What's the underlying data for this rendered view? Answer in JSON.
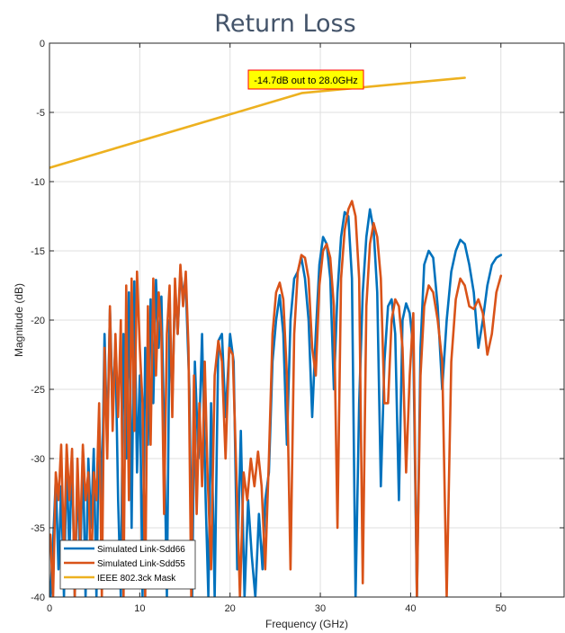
{
  "chart_data": {
    "type": "line",
    "title": "Return Loss",
    "xlabel": "Frequency (GHz)",
    "ylabel": "Magnitude (dB)",
    "xlim": [
      0,
      57
    ],
    "ylim": [
      -40,
      0
    ],
    "xticks": [
      0,
      10,
      20,
      30,
      40,
      50
    ],
    "yticks": [
      0,
      -5,
      -10,
      -15,
      -20,
      -25,
      -30,
      -35,
      -40
    ],
    "grid": true,
    "legend_position": "bottom-left",
    "annotation": {
      "text": "-14.7dB out to 28.0GHz",
      "x": 29.5,
      "y": -2.6
    },
    "series": [
      {
        "name": "Simulated Link-Sdd66",
        "color": "#0072bd",
        "points": [
          [
            0.1,
            -40
          ],
          [
            0.4,
            -36
          ],
          [
            0.7,
            -31.5
          ],
          [
            1.0,
            -38
          ],
          [
            1.3,
            -32
          ],
          [
            1.6,
            -40
          ],
          [
            1.9,
            -30
          ],
          [
            2.2,
            -37
          ],
          [
            2.5,
            -29.5
          ],
          [
            2.8,
            -40
          ],
          [
            3.1,
            -31
          ],
          [
            3.4,
            -38
          ],
          [
            3.7,
            -29.5
          ],
          [
            4.0,
            -40
          ],
          [
            4.3,
            -30
          ],
          [
            4.6,
            -35
          ],
          [
            4.9,
            -29.3
          ],
          [
            5.2,
            -40
          ],
          [
            5.5,
            -27
          ],
          [
            5.8,
            -33
          ],
          [
            6.1,
            -21
          ],
          [
            6.4,
            -29
          ],
          [
            6.7,
            -19.2
          ],
          [
            7.0,
            -26
          ],
          [
            7.3,
            -22
          ],
          [
            7.6,
            -33
          ],
          [
            7.9,
            -40
          ],
          [
            8.2,
            -21
          ],
          [
            8.5,
            -30
          ],
          [
            8.8,
            -18
          ],
          [
            9.1,
            -35
          ],
          [
            9.4,
            -17.2
          ],
          [
            9.7,
            -31
          ],
          [
            10.0,
            -24
          ],
          [
            10.3,
            -40
          ],
          [
            10.6,
            -22
          ],
          [
            10.9,
            -29
          ],
          [
            11.2,
            -18.5
          ],
          [
            11.5,
            -26
          ],
          [
            11.8,
            -17.1
          ],
          [
            12.1,
            -22
          ],
          [
            12.4,
            -18.3
          ],
          [
            12.7,
            -28
          ],
          [
            13.0,
            -40
          ],
          [
            13.3,
            -20
          ],
          [
            13.6,
            -26
          ],
          [
            13.9,
            -17.5
          ],
          [
            14.2,
            -21
          ],
          [
            14.5,
            -16.5
          ],
          [
            14.8,
            -18
          ],
          [
            15.1,
            -17.5
          ],
          [
            15.5,
            -25
          ],
          [
            15.8,
            -40
          ],
          [
            16.1,
            -23
          ],
          [
            16.5,
            -30
          ],
          [
            16.9,
            -21
          ],
          [
            17.3,
            -33
          ],
          [
            17.6,
            -40
          ],
          [
            17.9,
            -26
          ],
          [
            18.3,
            -40
          ],
          [
            18.7,
            -21.5
          ],
          [
            19.1,
            -21
          ],
          [
            19.5,
            -27
          ],
          [
            20.0,
            -21
          ],
          [
            20.4,
            -23
          ],
          [
            20.8,
            -38
          ],
          [
            21.2,
            -28
          ],
          [
            21.6,
            -40
          ],
          [
            22.0,
            -33
          ],
          [
            22.4,
            -37
          ],
          [
            22.8,
            -40
          ],
          [
            23.2,
            -34
          ],
          [
            23.6,
            -38
          ],
          [
            23.9,
            -33
          ],
          [
            24.3,
            -31
          ],
          [
            24.7,
            -23
          ],
          [
            25.1,
            -20
          ],
          [
            25.5,
            -18.2
          ],
          [
            25.9,
            -21
          ],
          [
            26.3,
            -29
          ],
          [
            26.7,
            -20
          ],
          [
            27.1,
            -17
          ],
          [
            27.5,
            -16.5
          ],
          [
            27.9,
            -15.5
          ],
          [
            28.3,
            -17
          ],
          [
            28.7,
            -20
          ],
          [
            29.1,
            -27
          ],
          [
            29.5,
            -21
          ],
          [
            29.9,
            -16
          ],
          [
            30.3,
            -14
          ],
          [
            30.7,
            -14.5
          ],
          [
            31.1,
            -17
          ],
          [
            31.5,
            -25
          ],
          [
            31.9,
            -18
          ],
          [
            32.3,
            -14
          ],
          [
            32.7,
            -12.2
          ],
          [
            33.1,
            -12.5
          ],
          [
            33.5,
            -17
          ],
          [
            33.9,
            -40
          ],
          [
            34.3,
            -26
          ],
          [
            34.7,
            -18
          ],
          [
            35.1,
            -14
          ],
          [
            35.5,
            -12
          ],
          [
            35.9,
            -13.5
          ],
          [
            36.3,
            -18
          ],
          [
            36.7,
            -32
          ],
          [
            37.1,
            -23
          ],
          [
            37.5,
            -19
          ],
          [
            37.9,
            -18.5
          ],
          [
            38.3,
            -21
          ],
          [
            38.7,
            -33
          ],
          [
            39.1,
            -20
          ],
          [
            39.5,
            -18.8
          ],
          [
            39.9,
            -19.5
          ],
          [
            40.3,
            -22
          ],
          [
            40.7,
            -40
          ],
          [
            41.1,
            -22
          ],
          [
            41.5,
            -16
          ],
          [
            42.0,
            -15
          ],
          [
            42.5,
            -15.5
          ],
          [
            43.0,
            -19
          ],
          [
            43.5,
            -25
          ],
          [
            44.0,
            -20
          ],
          [
            44.5,
            -16.5
          ],
          [
            45.0,
            -15
          ],
          [
            45.5,
            -14.2
          ],
          [
            46.0,
            -14.5
          ],
          [
            46.5,
            -16
          ],
          [
            47.0,
            -18
          ],
          [
            47.5,
            -22
          ],
          [
            48.0,
            -20
          ],
          [
            48.5,
            -17.5
          ],
          [
            49.0,
            -16
          ],
          [
            49.5,
            -15.5
          ],
          [
            50.0,
            -15.3
          ]
        ]
      },
      {
        "name": "Simulated Link-Sdd55",
        "color": "#d95319",
        "points": [
          [
            0.1,
            -35.5
          ],
          [
            0.4,
            -40
          ],
          [
            0.7,
            -31
          ],
          [
            1.0,
            -33
          ],
          [
            1.3,
            -29
          ],
          [
            1.6,
            -37
          ],
          [
            1.9,
            -29
          ],
          [
            2.2,
            -33
          ],
          [
            2.5,
            -29.3
          ],
          [
            2.8,
            -40
          ],
          [
            3.1,
            -30
          ],
          [
            3.4,
            -36
          ],
          [
            3.7,
            -29
          ],
          [
            4.0,
            -33
          ],
          [
            4.3,
            -31
          ],
          [
            4.6,
            -39
          ],
          [
            4.9,
            -31
          ],
          [
            5.2,
            -33
          ],
          [
            5.5,
            -26
          ],
          [
            5.8,
            -40
          ],
          [
            6.1,
            -22
          ],
          [
            6.4,
            -30
          ],
          [
            6.7,
            -19
          ],
          [
            7.0,
            -28
          ],
          [
            7.3,
            -21
          ],
          [
            7.6,
            -27
          ],
          [
            7.9,
            -20
          ],
          [
            8.2,
            -40
          ],
          [
            8.5,
            -17.5
          ],
          [
            8.8,
            -33
          ],
          [
            9.1,
            -17
          ],
          [
            9.4,
            -28
          ],
          [
            9.7,
            -16.5
          ],
          [
            10.0,
            -22
          ],
          [
            10.3,
            -26
          ],
          [
            10.6,
            -40
          ],
          [
            10.9,
            -19
          ],
          [
            11.2,
            -29
          ],
          [
            11.5,
            -17
          ],
          [
            11.8,
            -24
          ],
          [
            12.1,
            -18
          ],
          [
            12.4,
            -21
          ],
          [
            12.7,
            -34
          ],
          [
            13.0,
            -21
          ],
          [
            13.3,
            -17.5
          ],
          [
            13.6,
            -27
          ],
          [
            13.9,
            -17
          ],
          [
            14.2,
            -21
          ],
          [
            14.5,
            -16
          ],
          [
            14.8,
            -19
          ],
          [
            15.1,
            -16.5
          ],
          [
            15.4,
            -22
          ],
          [
            15.7,
            -40
          ],
          [
            16.0,
            -24
          ],
          [
            16.3,
            -34
          ],
          [
            16.6,
            -26
          ],
          [
            16.9,
            -32
          ],
          [
            17.2,
            -23
          ],
          [
            17.5,
            -31
          ],
          [
            17.9,
            -38
          ],
          [
            18.3,
            -24
          ],
          [
            18.7,
            -21.5
          ],
          [
            19.1,
            -23
          ],
          [
            19.5,
            -30
          ],
          [
            19.9,
            -22
          ],
          [
            20.3,
            -22.5
          ],
          [
            20.7,
            -31
          ],
          [
            21.1,
            -40
          ],
          [
            21.5,
            -31
          ],
          [
            21.9,
            -33
          ],
          [
            22.3,
            -30
          ],
          [
            22.7,
            -32
          ],
          [
            23.1,
            -29.5
          ],
          [
            23.5,
            -32
          ],
          [
            23.9,
            -38
          ],
          [
            24.3,
            -30
          ],
          [
            24.7,
            -21
          ],
          [
            25.1,
            -18
          ],
          [
            25.5,
            -17.3
          ],
          [
            25.9,
            -18.5
          ],
          [
            26.3,
            -24
          ],
          [
            26.7,
            -38
          ],
          [
            27.1,
            -21
          ],
          [
            27.5,
            -16.5
          ],
          [
            27.9,
            -15.3
          ],
          [
            28.3,
            -15.5
          ],
          [
            28.7,
            -17
          ],
          [
            29.1,
            -22
          ],
          [
            29.5,
            -24
          ],
          [
            29.9,
            -17.5
          ],
          [
            30.3,
            -15
          ],
          [
            30.7,
            -14.5
          ],
          [
            31.1,
            -15.5
          ],
          [
            31.5,
            -19
          ],
          [
            31.9,
            -35
          ],
          [
            32.3,
            -17
          ],
          [
            32.7,
            -13.5
          ],
          [
            33.1,
            -12
          ],
          [
            33.5,
            -11.4
          ],
          [
            33.9,
            -12.5
          ],
          [
            34.3,
            -17
          ],
          [
            34.7,
            -39
          ],
          [
            35.1,
            -19
          ],
          [
            35.5,
            -14.5
          ],
          [
            35.9,
            -13
          ],
          [
            36.3,
            -14
          ],
          [
            36.7,
            -17
          ],
          [
            37.1,
            -26
          ],
          [
            37.5,
            -26
          ],
          [
            37.9,
            -20
          ],
          [
            38.3,
            -18.5
          ],
          [
            38.7,
            -19
          ],
          [
            39.1,
            -22
          ],
          [
            39.5,
            -31
          ],
          [
            39.9,
            -24
          ],
          [
            40.3,
            -19.5
          ],
          [
            40.7,
            -40
          ],
          [
            41.1,
            -24
          ],
          [
            41.5,
            -19
          ],
          [
            42.0,
            -17.5
          ],
          [
            42.5,
            -18
          ],
          [
            43.0,
            -20
          ],
          [
            43.5,
            -23
          ],
          [
            44.0,
            -40
          ],
          [
            44.5,
            -23
          ],
          [
            45.0,
            -18.5
          ],
          [
            45.5,
            -17
          ],
          [
            46.0,
            -17.5
          ],
          [
            46.5,
            -19
          ],
          [
            47.0,
            -19.2
          ],
          [
            47.5,
            -18.5
          ],
          [
            48.0,
            -19.5
          ],
          [
            48.5,
            -22.5
          ],
          [
            49.0,
            -21
          ],
          [
            49.5,
            -18
          ],
          [
            50.0,
            -16.8
          ]
        ]
      },
      {
        "name": "IEEE 802.3ck Mask",
        "color": "#edb120",
        "points": [
          [
            0,
            -9.0
          ],
          [
            28,
            -3.6
          ],
          [
            46,
            -2.5
          ]
        ]
      }
    ]
  }
}
